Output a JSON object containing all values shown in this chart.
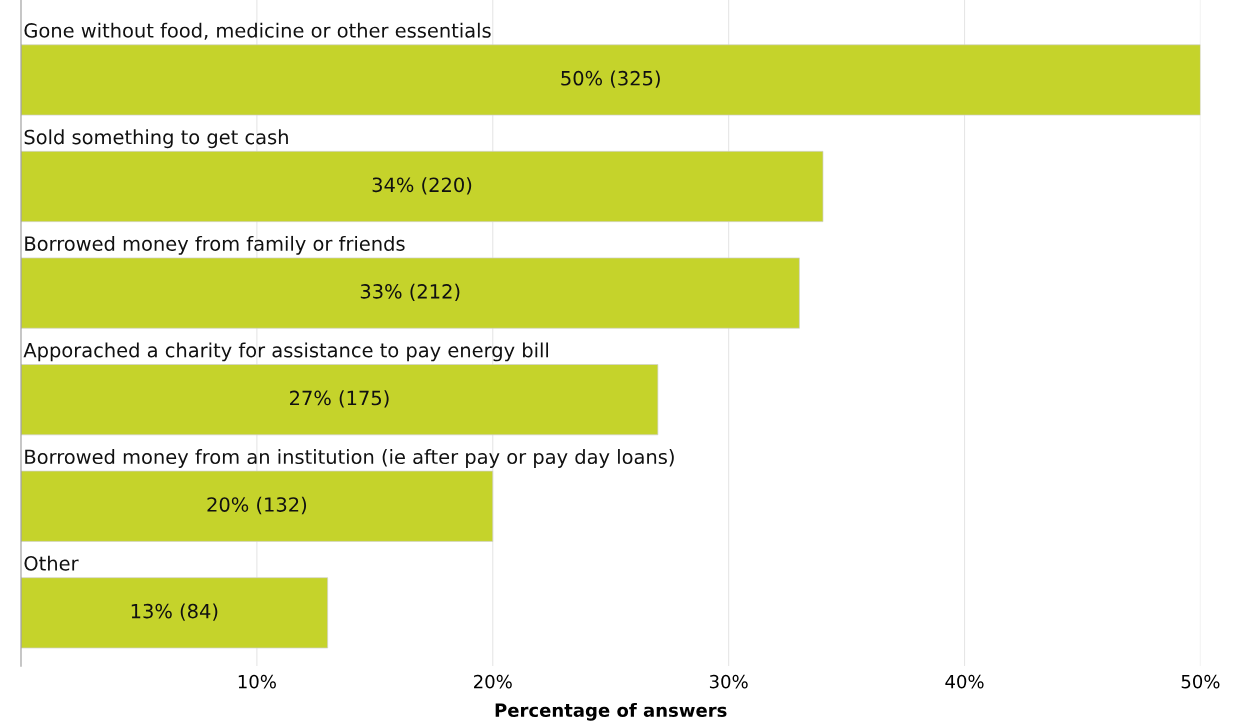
{
  "chart_data": {
    "type": "bar",
    "orientation": "horizontal",
    "xlabel": "Percentage of answers",
    "categories": [
      "Gone without food, medicine or other essentials",
      "Sold something to get cash",
      "Borrowed money from family or friends",
      "Apporached a charity for assistance to pay energy bill",
      "Borrowed money from an institution (ie after pay or pay day loans)",
      "Other"
    ],
    "values": [
      50,
      34,
      33,
      27,
      20,
      13
    ],
    "value_labels": [
      "50% (325)",
      "34% (220)",
      "33% (212)",
      "27% (175)",
      "20% (132)",
      "13% (84)"
    ],
    "color": "#c5d32b",
    "xlim": [
      0,
      50
    ],
    "xticks": [
      {
        "value": 10,
        "label": "10%"
      },
      {
        "value": 20,
        "label": "20%"
      },
      {
        "value": 30,
        "label": "30%"
      },
      {
        "value": 40,
        "label": "40%"
      },
      {
        "value": 50,
        "label": "50%"
      }
    ],
    "grid": "x"
  }
}
